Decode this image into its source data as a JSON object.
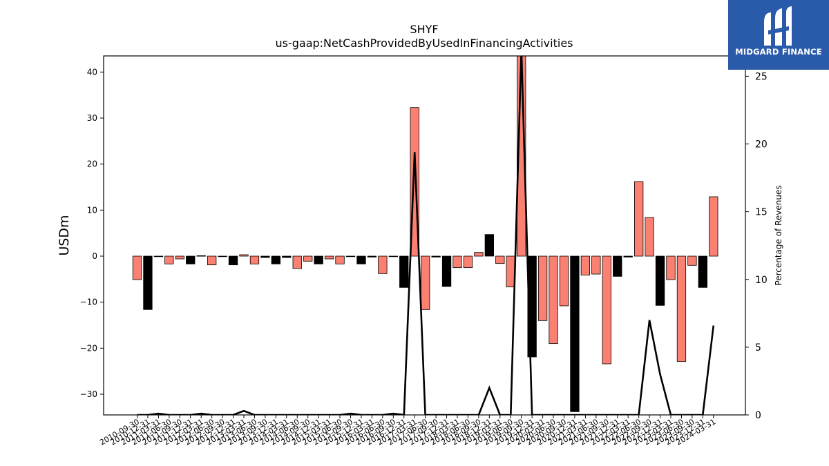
{
  "chart_data": {
    "type": "bar",
    "title": "SHYF",
    "subtitle": "us-gaap:NetCashProvidedByUsedInFinancingActivities",
    "ylabel": "USDm",
    "y2label": "Percentage of Revenues",
    "ylim": [
      -34.5,
      43.5
    ],
    "y2lim": [
      0,
      26.5
    ],
    "yticks": [
      -30,
      -20,
      -10,
      0,
      10,
      20,
      30,
      40
    ],
    "y2ticks": [
      0,
      5,
      10,
      15,
      20,
      25
    ],
    "categories": [
      "2010-09-30",
      "2010-12-31",
      "2011-03-31",
      "2011-06-30",
      "2011-09-30",
      "2011-12-31",
      "2012-03-31",
      "2012-06-30",
      "2012-09-30",
      "2012-12-31",
      "2013-03-31",
      "2013-06-30",
      "2013-09-30",
      "2013-12-31",
      "2014-03-31",
      "2014-06-30",
      "2014-09-30",
      "2014-12-31",
      "2015-03-31",
      "2015-06-30",
      "2015-09-30",
      "2015-12-31",
      "2016-03-31",
      "2016-06-30",
      "2016-09-30",
      "2016-12-31",
      "2017-03-31",
      "2017-06-30",
      "2017-09-30",
      "2017-12-31",
      "2018-03-31",
      "2018-06-30",
      "2018-09-30",
      "2018-12-31",
      "2019-03-31",
      "2019-06-30",
      "2019-09-30",
      "2019-12-31",
      "2020-03-31",
      "2020-06-30",
      "2020-09-30",
      "2020-12-31",
      "2021-03-31",
      "2021-06-30",
      "2021-09-30",
      "2021-12-31",
      "2022-03-31",
      "2022-06-30",
      "2022-09-30",
      "2022-12-31",
      "2023-03-31",
      "2023-06-30",
      "2023-09-30",
      "2023-12-31",
      "2024-03-31"
    ],
    "series": [
      {
        "values": [
          -5.1,
          -11.6,
          -0.1,
          -1.7,
          -0.6,
          -1.7,
          0.1,
          -1.9,
          -0.1,
          -1.9,
          0.3,
          -1.7,
          -0.3,
          -1.7,
          -0.3,
          -2.7,
          -1.1,
          -1.7,
          -0.6,
          -1.7,
          -0.1,
          -1.7,
          -0.2,
          -3.8,
          -0.1,
          -6.8,
          32.3,
          -11.6,
          -0.2,
          -6.6,
          -2.5,
          -2.5,
          0.8,
          4.7,
          -1.6,
          -6.7,
          45.0,
          -21.9,
          -14.0,
          -19.0,
          -10.8,
          -33.8,
          -4.1,
          -3.9,
          -23.4,
          -4.4,
          -0.2,
          16.2,
          8.4,
          -10.7,
          -5.1,
          -22.9,
          -2.0,
          -6.8,
          12.9
        ],
        "colors": [
          "#fa8072",
          "#000000",
          "#000000",
          "#fa8072",
          "#fa8072",
          "#000000",
          "#000000",
          "#fa8072",
          "#000000",
          "#000000",
          "#fa8072",
          "#fa8072",
          "#000000",
          "#000000",
          "#000000",
          "#fa8072",
          "#fa8072",
          "#000000",
          "#fa8072",
          "#fa8072",
          "#000000",
          "#000000",
          "#000000",
          "#fa8072",
          "#000000",
          "#000000",
          "#fa8072",
          "#fa8072",
          "#000000",
          "#000000",
          "#fa8072",
          "#fa8072",
          "#fa8072",
          "#000000",
          "#fa8072",
          "#fa8072",
          "#fa8072",
          "#000000",
          "#fa8072",
          "#fa8072",
          "#fa8072",
          "#000000",
          "#fa8072",
          "#fa8072",
          "#fa8072",
          "#000000",
          "#000000",
          "#fa8072",
          "#fa8072",
          "#000000",
          "#fa8072",
          "#fa8072",
          "#fa8072",
          "#000000",
          "#fa8072"
        ]
      },
      {
        "type": "line",
        "axis": "right",
        "color": "#000000",
        "values": [
          0,
          0,
          0.1,
          0,
          0,
          0,
          0.1,
          0,
          0,
          0,
          0.3,
          0,
          0,
          0,
          0,
          0,
          0,
          0,
          0,
          0,
          0.1,
          0,
          0,
          0,
          0.1,
          0,
          19.4,
          0,
          0,
          0,
          0,
          0,
          0,
          2,
          0,
          0,
          27,
          0,
          0,
          0,
          0,
          0,
          0,
          0,
          0,
          0,
          0,
          0,
          7,
          3,
          0,
          0,
          0,
          0,
          6.6
        ]
      }
    ]
  },
  "logo": {
    "text": "MIDGARD FINANCE",
    "color": "#2a5aaa"
  }
}
